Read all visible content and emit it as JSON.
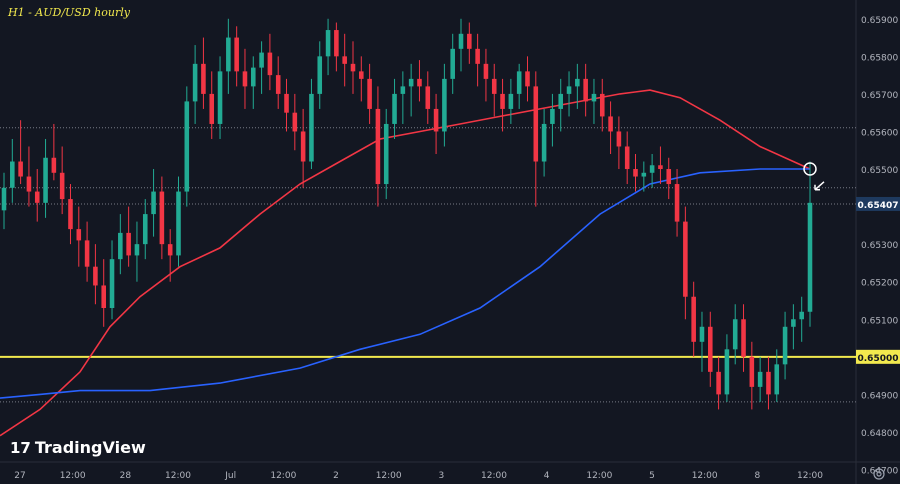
{
  "branding": {
    "logo_text": "TradingView"
  },
  "colors": {
    "background": "#131722",
    "up_candle": "#22ab94",
    "down_candle": "#f23645",
    "ma_fast": "#f23645",
    "ma_slow": "#2962ff",
    "support_line": "#f2e94e",
    "grid": "#5b6070",
    "axis_text": "#b2b5be",
    "price_tag": "#1e3a5f"
  },
  "chart_data": {
    "type": "candlestick",
    "title": "H1 - AUD/USD hourly",
    "ylim": [
      0.6472,
      0.6595
    ],
    "y_ticks": [
      "0.65900",
      "0.65800",
      "0.65700",
      "0.65600",
      "0.65500",
      "0.65400",
      "0.65300",
      "0.65200",
      "0.65100",
      "0.65000",
      "0.64900",
      "0.64800",
      "0.64700"
    ],
    "x_ticks": [
      "27",
      "12:00",
      "28",
      "12:00",
      "Jul",
      "12:00",
      "2",
      "12:00",
      "3",
      "12:00",
      "4",
      "12:00",
      "5",
      "12:00",
      "8",
      "12:00"
    ],
    "horizontal_lines": [
      {
        "name": "support",
        "value": 0.65,
        "label": "0.65000",
        "style": "solid"
      },
      {
        "name": "last-price",
        "value": 0.65407,
        "label": "0.65407",
        "style": "dotted"
      },
      {
        "name": "level-0.6561",
        "value": 0.6561,
        "style": "dotted"
      },
      {
        "name": "level-0.6545",
        "value": 0.6545,
        "style": "dotted"
      },
      {
        "name": "level-0.6488",
        "value": 0.6488,
        "style": "dotted"
      }
    ],
    "last_price": "0.65407",
    "moving_averages": [
      {
        "name": "red moving average",
        "color": "#f23645",
        "points": [
          [
            0,
            0.6479
          ],
          [
            40,
            0.6486
          ],
          [
            80,
            0.6496
          ],
          [
            110,
            0.6508
          ],
          [
            140,
            0.6516
          ],
          [
            180,
            0.6524
          ],
          [
            220,
            0.6529
          ],
          [
            260,
            0.6538
          ],
          [
            300,
            0.6546
          ],
          [
            340,
            0.6552
          ],
          [
            380,
            0.6558
          ],
          [
            420,
            0.656
          ],
          [
            460,
            0.6562
          ],
          [
            500,
            0.6564
          ],
          [
            540,
            0.6566
          ],
          [
            580,
            0.6568
          ],
          [
            620,
            0.657
          ],
          [
            650,
            0.6571
          ],
          [
            680,
            0.6569
          ],
          [
            720,
            0.6563
          ],
          [
            760,
            0.6556
          ],
          [
            810,
            0.655
          ]
        ]
      },
      {
        "name": "blue moving average",
        "color": "#2962ff",
        "points": [
          [
            0,
            0.6489
          ],
          [
            40,
            0.649
          ],
          [
            80,
            0.6491
          ],
          [
            150,
            0.6491
          ],
          [
            220,
            0.6493
          ],
          [
            300,
            0.6497
          ],
          [
            360,
            0.6502
          ],
          [
            420,
            0.6506
          ],
          [
            480,
            0.6513
          ],
          [
            540,
            0.6524
          ],
          [
            600,
            0.6538
          ],
          [
            650,
            0.6546
          ],
          [
            700,
            0.6549
          ],
          [
            760,
            0.655
          ],
          [
            810,
            0.655
          ]
        ]
      }
    ],
    "candles": [
      [
        0.6539,
        0.6549,
        0.6534,
        0.6545
      ],
      [
        0.6545,
        0.6558,
        0.6541,
        0.6552
      ],
      [
        0.6552,
        0.6563,
        0.6546,
        0.6548
      ],
      [
        0.6548,
        0.6556,
        0.654,
        0.6544
      ],
      [
        0.6544,
        0.655,
        0.6536,
        0.6541
      ],
      [
        0.6541,
        0.6558,
        0.6537,
        0.6553
      ],
      [
        0.6553,
        0.6562,
        0.6547,
        0.6549
      ],
      [
        0.6549,
        0.6556,
        0.6538,
        0.6542
      ],
      [
        0.6542,
        0.6546,
        0.653,
        0.6534
      ],
      [
        0.6534,
        0.654,
        0.6524,
        0.6531
      ],
      [
        0.6531,
        0.6536,
        0.652,
        0.6524
      ],
      [
        0.6524,
        0.653,
        0.6514,
        0.6519
      ],
      [
        0.6519,
        0.6526,
        0.6508,
        0.6513
      ],
      [
        0.6513,
        0.6531,
        0.651,
        0.6526
      ],
      [
        0.6526,
        0.6538,
        0.6522,
        0.6533
      ],
      [
        0.6533,
        0.654,
        0.6524,
        0.6527
      ],
      [
        0.6527,
        0.6536,
        0.652,
        0.653
      ],
      [
        0.653,
        0.6542,
        0.6526,
        0.6538
      ],
      [
        0.6538,
        0.655,
        0.6532,
        0.6544
      ],
      [
        0.6544,
        0.6548,
        0.6526,
        0.653
      ],
      [
        0.653,
        0.6534,
        0.652,
        0.6527
      ],
      [
        0.6527,
        0.6548,
        0.6524,
        0.6544
      ],
      [
        0.6544,
        0.6572,
        0.654,
        0.6568
      ],
      [
        0.6568,
        0.6583,
        0.6562,
        0.6578
      ],
      [
        0.6578,
        0.6585,
        0.6566,
        0.657
      ],
      [
        0.657,
        0.6576,
        0.6558,
        0.6562
      ],
      [
        0.6562,
        0.658,
        0.6558,
        0.6576
      ],
      [
        0.6576,
        0.659,
        0.657,
        0.6585
      ],
      [
        0.6585,
        0.6588,
        0.6572,
        0.6576
      ],
      [
        0.6576,
        0.6582,
        0.6566,
        0.6572
      ],
      [
        0.6572,
        0.658,
        0.6566,
        0.6577
      ],
      [
        0.6577,
        0.6584,
        0.657,
        0.6581
      ],
      [
        0.6581,
        0.6586,
        0.6571,
        0.6575
      ],
      [
        0.6575,
        0.658,
        0.6566,
        0.657
      ],
      [
        0.657,
        0.6574,
        0.656,
        0.6565
      ],
      [
        0.6565,
        0.657,
        0.6555,
        0.656
      ],
      [
        0.656,
        0.6566,
        0.6545,
        0.6552
      ],
      [
        0.6552,
        0.6574,
        0.655,
        0.657
      ],
      [
        0.657,
        0.6584,
        0.6566,
        0.658
      ],
      [
        0.658,
        0.659,
        0.6575,
        0.6587
      ],
      [
        0.6587,
        0.6589,
        0.6576,
        0.658
      ],
      [
        0.658,
        0.6586,
        0.6572,
        0.6578
      ],
      [
        0.6578,
        0.6584,
        0.657,
        0.6576
      ],
      [
        0.6576,
        0.658,
        0.6568,
        0.6574
      ],
      [
        0.6574,
        0.6578,
        0.6562,
        0.6566
      ],
      [
        0.6566,
        0.6572,
        0.654,
        0.6546
      ],
      [
        0.6546,
        0.6566,
        0.6542,
        0.6562
      ],
      [
        0.6562,
        0.6574,
        0.6558,
        0.657
      ],
      [
        0.657,
        0.6576,
        0.6562,
        0.6572
      ],
      [
        0.6572,
        0.6578,
        0.6564,
        0.6574
      ],
      [
        0.6574,
        0.6579,
        0.6568,
        0.6572
      ],
      [
        0.6572,
        0.6576,
        0.6562,
        0.6566
      ],
      [
        0.6566,
        0.657,
        0.6554,
        0.656
      ],
      [
        0.656,
        0.6578,
        0.6556,
        0.6574
      ],
      [
        0.6574,
        0.6586,
        0.657,
        0.6582
      ],
      [
        0.6582,
        0.659,
        0.6576,
        0.6586
      ],
      [
        0.6586,
        0.6589,
        0.6578,
        0.6582
      ],
      [
        0.6582,
        0.6586,
        0.6572,
        0.6578
      ],
      [
        0.6578,
        0.6582,
        0.6568,
        0.6574
      ],
      [
        0.6574,
        0.6578,
        0.6564,
        0.657
      ],
      [
        0.657,
        0.6574,
        0.656,
        0.6566
      ],
      [
        0.6566,
        0.6574,
        0.6562,
        0.657
      ],
      [
        0.657,
        0.6578,
        0.6566,
        0.6576
      ],
      [
        0.6576,
        0.658,
        0.6568,
        0.6572
      ],
      [
        0.6572,
        0.6576,
        0.654,
        0.6552
      ],
      [
        0.6552,
        0.6566,
        0.6548,
        0.6562
      ],
      [
        0.6562,
        0.657,
        0.6556,
        0.6566
      ],
      [
        0.6566,
        0.6574,
        0.656,
        0.657
      ],
      [
        0.657,
        0.6576,
        0.6564,
        0.6572
      ],
      [
        0.6572,
        0.6578,
        0.6566,
        0.6574
      ],
      [
        0.6574,
        0.6578,
        0.6564,
        0.6568
      ],
      [
        0.6568,
        0.6574,
        0.6562,
        0.657
      ],
      [
        0.657,
        0.6574,
        0.656,
        0.6564
      ],
      [
        0.6564,
        0.6568,
        0.6554,
        0.656
      ],
      [
        0.656,
        0.6564,
        0.655,
        0.6556
      ],
      [
        0.6556,
        0.656,
        0.6546,
        0.655
      ],
      [
        0.655,
        0.6554,
        0.6544,
        0.6548
      ],
      [
        0.6548,
        0.6552,
        0.6544,
        0.6549
      ],
      [
        0.6549,
        0.6554,
        0.6545,
        0.6551
      ],
      [
        0.6551,
        0.6556,
        0.6546,
        0.655
      ],
      [
        0.655,
        0.6553,
        0.6542,
        0.6546
      ],
      [
        0.6546,
        0.655,
        0.6532,
        0.6536
      ],
      [
        0.6536,
        0.654,
        0.651,
        0.6516
      ],
      [
        0.6516,
        0.652,
        0.65,
        0.6504
      ],
      [
        0.6504,
        0.6512,
        0.6496,
        0.6508
      ],
      [
        0.6508,
        0.6512,
        0.6492,
        0.6496
      ],
      [
        0.6496,
        0.65,
        0.6486,
        0.649
      ],
      [
        0.649,
        0.6506,
        0.6488,
        0.6502
      ],
      [
        0.6502,
        0.6514,
        0.6498,
        0.651
      ],
      [
        0.651,
        0.6514,
        0.6496,
        0.65
      ],
      [
        0.65,
        0.6504,
        0.6486,
        0.6492
      ],
      [
        0.6492,
        0.65,
        0.6488,
        0.6496
      ],
      [
        0.6496,
        0.65,
        0.6486,
        0.649
      ],
      [
        0.649,
        0.6502,
        0.6488,
        0.6498
      ],
      [
        0.6498,
        0.6512,
        0.6494,
        0.6508
      ],
      [
        0.6508,
        0.6514,
        0.6502,
        0.651
      ],
      [
        0.651,
        0.6516,
        0.6504,
        0.6512
      ],
      [
        0.6512,
        0.6552,
        0.6508,
        0.6541
      ]
    ],
    "annotations": [
      {
        "name": "cross-marker",
        "type": "circle",
        "value": 0.655
      },
      {
        "name": "price-arrow",
        "type": "arrow",
        "value": 0.65407
      }
    ]
  }
}
